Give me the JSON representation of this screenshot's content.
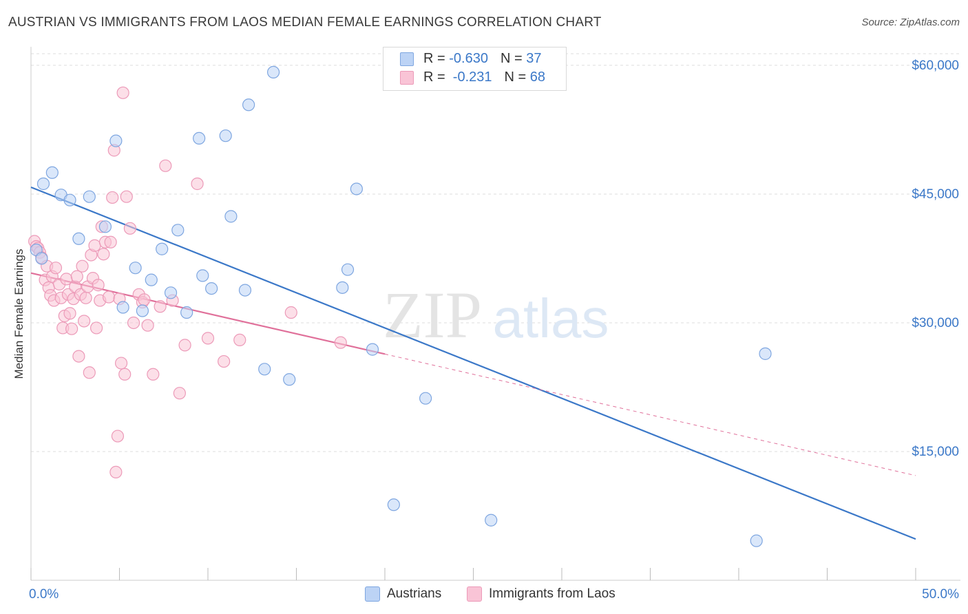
{
  "title": "AUSTRIAN VS IMMIGRANTS FROM LAOS MEDIAN FEMALE EARNINGS CORRELATION CHART",
  "source": "Source: ZipAtlas.com",
  "watermark": {
    "zip": "ZIP",
    "atlas": "atlas"
  },
  "legend": {
    "rows": [
      {
        "r_label": "R = ",
        "r_value": "-0.630",
        "n_label": "N = ",
        "n_value": "37"
      },
      {
        "r_label": "R = ",
        "r_value": " -0.231",
        "n_label": "N = ",
        "n_value": "68"
      }
    ]
  },
  "bottom_legend": {
    "series1": "Austrians",
    "series2": "Immigrants from Laos"
  },
  "colors": {
    "blue": "#3b78c8",
    "blue_fill": "#bcd3f5",
    "blue_stroke": "#7ea6e0",
    "pink": "#e0709a",
    "pink_fill": "#f9c4d6",
    "pink_stroke": "#ec9ab8",
    "grid": "#dcdcdc",
    "tick_label": "#3b78c8"
  },
  "chart_data": {
    "type": "scatter",
    "xlabel": "",
    "ylabel": "Median Female Earnings",
    "xlim": [
      0,
      50
    ],
    "ylim": [
      0,
      62000
    ],
    "x_tick_labels": [
      "0.0%",
      "50.0%"
    ],
    "y_ticks": [
      15000,
      30000,
      45000,
      60000
    ],
    "y_tick_labels": [
      "$15,000",
      "$30,000",
      "$45,000",
      "$60,000"
    ],
    "series": [
      {
        "name": "Austrians",
        "r": -0.63,
        "n": 37,
        "trend": {
          "x": [
            0,
            50
          ],
          "y": [
            45800,
            4800
          ]
        },
        "points": [
          [
            0.3,
            38500
          ],
          [
            0.6,
            37500
          ],
          [
            0.7,
            46200
          ],
          [
            1.2,
            47500
          ],
          [
            1.7,
            44900
          ],
          [
            2.2,
            44300
          ],
          [
            2.7,
            39800
          ],
          [
            3.3,
            44700
          ],
          [
            4.2,
            41200
          ],
          [
            4.8,
            51200
          ],
          [
            5.2,
            31800
          ],
          [
            5.9,
            36400
          ],
          [
            6.3,
            31400
          ],
          [
            6.8,
            35000
          ],
          [
            7.4,
            38600
          ],
          [
            7.9,
            33500
          ],
          [
            8.3,
            40800
          ],
          [
            8.8,
            31200
          ],
          [
            9.5,
            51500
          ],
          [
            9.7,
            35500
          ],
          [
            10.2,
            34000
          ],
          [
            11.0,
            51800
          ],
          [
            11.3,
            42400
          ],
          [
            12.1,
            33800
          ],
          [
            12.3,
            55400
          ],
          [
            13.2,
            24600
          ],
          [
            13.7,
            59200
          ],
          [
            14.6,
            23400
          ],
          [
            17.6,
            34100
          ],
          [
            17.9,
            36200
          ],
          [
            18.4,
            45600
          ],
          [
            19.3,
            26900
          ],
          [
            20.5,
            8800
          ],
          [
            22.3,
            21200
          ],
          [
            26.0,
            7000
          ],
          [
            41.0,
            4600
          ],
          [
            41.5,
            26400
          ]
        ]
      },
      {
        "name": "Immigrants from Laos",
        "r": -0.231,
        "n": 68,
        "trend": {
          "x": [
            0,
            50
          ],
          "y": [
            35800,
            12200
          ],
          "solid_until_x": 20
        },
        "points": [
          [
            0.2,
            39500
          ],
          [
            0.3,
            38900
          ],
          [
            0.4,
            38700
          ],
          [
            0.5,
            38200
          ],
          [
            0.6,
            37600
          ],
          [
            0.8,
            35000
          ],
          [
            0.9,
            36600
          ],
          [
            1.0,
            34100
          ],
          [
            1.1,
            33200
          ],
          [
            1.2,
            35400
          ],
          [
            1.3,
            32600
          ],
          [
            1.4,
            36400
          ],
          [
            1.6,
            34500
          ],
          [
            1.7,
            32900
          ],
          [
            1.8,
            29400
          ],
          [
            1.9,
            30800
          ],
          [
            2.0,
            35100
          ],
          [
            2.1,
            33300
          ],
          [
            2.2,
            31100
          ],
          [
            2.3,
            29300
          ],
          [
            2.4,
            32800
          ],
          [
            2.5,
            34200
          ],
          [
            2.6,
            35400
          ],
          [
            2.7,
            26100
          ],
          [
            2.8,
            33300
          ],
          [
            2.9,
            36600
          ],
          [
            3.0,
            30200
          ],
          [
            3.1,
            32900
          ],
          [
            3.2,
            34200
          ],
          [
            3.3,
            24200
          ],
          [
            3.4,
            37900
          ],
          [
            3.5,
            35200
          ],
          [
            3.6,
            39000
          ],
          [
            3.7,
            29400
          ],
          [
            3.8,
            34400
          ],
          [
            3.9,
            32600
          ],
          [
            4.0,
            41200
          ],
          [
            4.1,
            38000
          ],
          [
            4.2,
            39400
          ],
          [
            4.4,
            33000
          ],
          [
            4.5,
            39400
          ],
          [
            4.6,
            44600
          ],
          [
            4.7,
            50100
          ],
          [
            4.8,
            12600
          ],
          [
            4.9,
            16800
          ],
          [
            5.0,
            32800
          ],
          [
            5.1,
            25300
          ],
          [
            5.2,
            56800
          ],
          [
            5.3,
            24000
          ],
          [
            5.4,
            44700
          ],
          [
            5.6,
            41000
          ],
          [
            5.8,
            30000
          ],
          [
            6.1,
            33300
          ],
          [
            6.3,
            32400
          ],
          [
            6.4,
            32700
          ],
          [
            6.6,
            29700
          ],
          [
            6.9,
            24000
          ],
          [
            7.3,
            31900
          ],
          [
            7.6,
            48300
          ],
          [
            8.0,
            32600
          ],
          [
            8.4,
            21800
          ],
          [
            8.7,
            27400
          ],
          [
            9.4,
            46200
          ],
          [
            10.0,
            28200
          ],
          [
            10.9,
            25500
          ],
          [
            11.8,
            28000
          ],
          [
            14.7,
            31200
          ],
          [
            17.5,
            27700
          ]
        ]
      }
    ]
  }
}
